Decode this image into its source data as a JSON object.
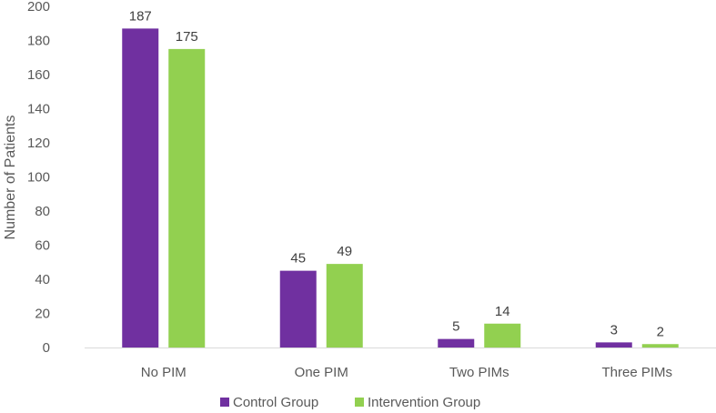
{
  "chart_data": {
    "type": "bar",
    "categories": [
      "No PIM",
      "One PIM",
      "Two PIMs",
      "Three PIMs"
    ],
    "series": [
      {
        "name": "Control Group",
        "values": [
          187,
          45,
          5,
          3
        ],
        "color": "#7030a0"
      },
      {
        "name": "Intervention Group",
        "values": [
          175,
          49,
          14,
          2
        ],
        "color": "#92d050"
      }
    ],
    "title": "",
    "xlabel": "",
    "ylabel": "Number of Patients",
    "ylim": [
      0,
      200
    ],
    "yticks": [
      0,
      20,
      40,
      60,
      80,
      100,
      120,
      140,
      160,
      180,
      200
    ],
    "grid": false,
    "legend_position": "bottom"
  }
}
